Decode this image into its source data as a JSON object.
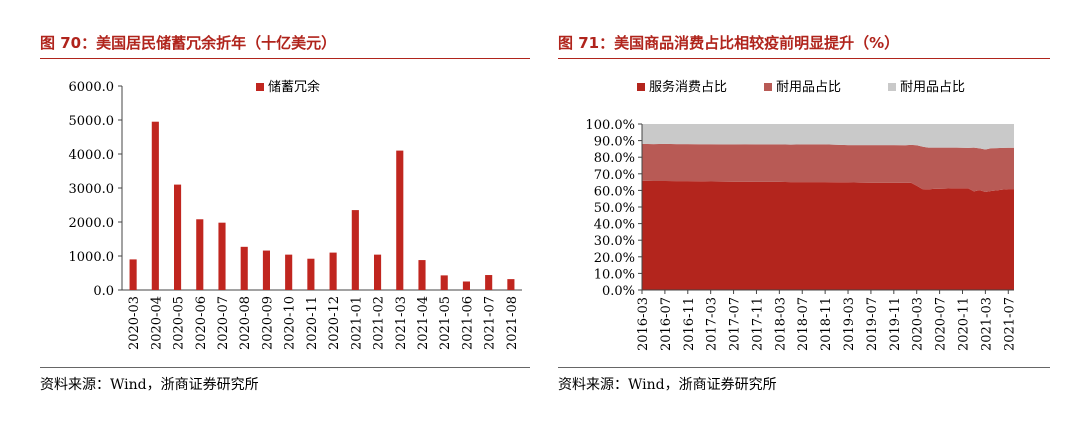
{
  "left": {
    "title": "图 70：美国居民储蓄冗余折年（十亿美元）",
    "source": "资料来源：Wind，浙商证券研究所"
  },
  "right": {
    "title": "图 71：美国商品消费占比相较疫前明显提升（%）",
    "source": "资料来源：Wind，浙商证券研究所"
  },
  "colors": {
    "accent": "#b0241c",
    "bar": "#c0261f",
    "services": "#b3251d",
    "durables": "#b85a55",
    "nondurables": "#c9c9c9"
  },
  "chart_data": [
    {
      "type": "bar",
      "categories": [
        "2020-03",
        "2020-04",
        "2020-05",
        "2020-06",
        "2020-07",
        "2020-08",
        "2020-09",
        "2020-10",
        "2020-11",
        "2020-12",
        "2021-01",
        "2021-02",
        "2021-03",
        "2021-04",
        "2021-05",
        "2021-06",
        "2021-07",
        "2021-08"
      ],
      "series": [
        {
          "name": "储蓄冗余",
          "values": [
            900,
            4950,
            3100,
            2080,
            1980,
            1270,
            1160,
            1040,
            920,
            1100,
            2350,
            1040,
            4100,
            880,
            430,
            250,
            440,
            320
          ]
        }
      ],
      "ylim": [
        0,
        6000
      ],
      "yticks": [
        "0.0",
        "1000.0",
        "2000.0",
        "3000.0",
        "4000.0",
        "5000.0",
        "6000.0"
      ],
      "legend": "top-center"
    },
    {
      "type": "area",
      "stacked": true,
      "x": [
        "2016-03",
        "2016-05",
        "2016-07",
        "2016-09",
        "2016-11",
        "2017-01",
        "2017-03",
        "2017-05",
        "2017-07",
        "2017-09",
        "2017-11",
        "2018-01",
        "2018-03",
        "2018-05",
        "2018-07",
        "2018-09",
        "2018-11",
        "2019-01",
        "2019-03",
        "2019-05",
        "2019-07",
        "2019-09",
        "2019-11",
        "2020-01",
        "2020-02",
        "2020-03",
        "2020-04",
        "2020-05",
        "2020-06",
        "2020-07",
        "2020-08",
        "2020-09",
        "2020-10",
        "2020-11",
        "2020-12",
        "2021-01",
        "2021-02",
        "2021-03",
        "2021-04",
        "2021-05",
        "2021-06",
        "2021-07",
        "2021-08"
      ],
      "xticks": [
        "2016-03",
        "2016-07",
        "2016-11",
        "2017-03",
        "2017-07",
        "2017-11",
        "2018-03",
        "2018-07",
        "2018-11",
        "2019-03",
        "2019-07",
        "2019-11",
        "2020-03",
        "2020-07",
        "2020-11",
        "2021-03",
        "2021-07"
      ],
      "series": [
        {
          "name": "服务消费占比",
          "values": [
            65.8,
            65.7,
            65.7,
            65.6,
            65.6,
            65.5,
            65.4,
            65.3,
            65.2,
            65.2,
            65.1,
            65.1,
            65.1,
            65.0,
            65.0,
            65.0,
            65.0,
            64.9,
            64.8,
            64.7,
            64.6,
            64.6,
            64.6,
            64.5,
            64.6,
            62.8,
            60.8,
            60.6,
            60.9,
            61.0,
            61.1,
            61.2,
            61.2,
            61.2,
            61.2,
            59.4,
            60.2,
            59.0,
            59.6,
            60.0,
            60.5,
            60.8,
            60.8
          ]
        },
        {
          "name": "耐用品占比",
          "values": [
            22.2,
            22.2,
            22.3,
            22.3,
            22.3,
            22.3,
            22.4,
            22.4,
            22.5,
            22.6,
            22.6,
            22.6,
            22.6,
            22.6,
            22.7,
            22.7,
            22.7,
            22.6,
            22.5,
            22.6,
            22.7,
            22.7,
            22.7,
            22.7,
            22.8,
            24.4,
            25.6,
            25.2,
            24.9,
            24.8,
            24.7,
            24.6,
            24.6,
            24.5,
            24.4,
            26.4,
            25.1,
            25.6,
            25.8,
            25.5,
            25.1,
            24.9,
            24.9
          ]
        },
        {
          "name": "耐用品占比",
          "values": [
            12.0,
            12.1,
            12.0,
            12.1,
            12.1,
            12.2,
            12.2,
            12.3,
            12.3,
            12.2,
            12.3,
            12.3,
            12.3,
            12.4,
            12.3,
            12.3,
            12.3,
            12.5,
            12.7,
            12.7,
            12.7,
            12.7,
            12.7,
            12.8,
            12.6,
            12.8,
            13.6,
            14.2,
            14.2,
            14.2,
            14.2,
            14.2,
            14.2,
            14.3,
            14.4,
            14.2,
            14.7,
            15.4,
            14.6,
            14.5,
            14.4,
            14.3,
            14.3
          ]
        }
      ],
      "ylim": [
        0,
        100
      ],
      "yticks": [
        "0.0%",
        "10.0%",
        "20.0%",
        "30.0%",
        "40.0%",
        "50.0%",
        "60.0%",
        "70.0%",
        "80.0%",
        "90.0%",
        "100.0%"
      ],
      "legend": "top"
    }
  ]
}
